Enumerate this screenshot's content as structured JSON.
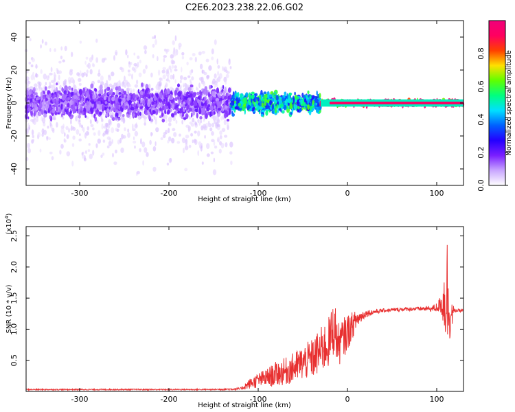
{
  "title": "C2E6.2023.238.22.06.G02",
  "chart_data": [
    {
      "type": "heatmap",
      "xlabel": "Height of straight line (km)",
      "ylabel": "Frequency (Hz)",
      "xlim": [
        -360,
        130
      ],
      "ylim": [
        -50,
        50
      ],
      "xticks": [
        -300,
        -200,
        -100,
        0,
        100
      ],
      "xtick_labels": [
        "-300",
        "-200",
        "-100",
        "0",
        "100"
      ],
      "yticks": [
        -40,
        -20,
        0,
        20,
        40
      ],
      "ytick_labels": [
        "-40",
        "-20",
        "0",
        "20",
        "40"
      ],
      "colorbar": {
        "label": "Normalized spectral amplitude",
        "range": [
          0,
          1
        ],
        "ticks": [
          0.0,
          0.2,
          0.4,
          0.6,
          0.8
        ],
        "tick_labels": [
          "0.0",
          "0.2",
          "0.4",
          "0.6",
          "0.8"
        ],
        "colormap": [
          "#ffffff",
          "#c9a6ff",
          "#7a1fff",
          "#2400ff",
          "#0060ff",
          "#00e0ff",
          "#00ff80",
          "#60ff00",
          "#ffe000",
          "#ff4000",
          "#ff0060",
          "#f0007a"
        ]
      },
      "features": [
        {
          "x_range": [
            -360,
            -130
          ],
          "freq_halfwidth": 50,
          "amplitude": 0.05,
          "description_color": "#c9a6ff"
        },
        {
          "x_range": [
            -360,
            -130
          ],
          "freq_halfwidth": 12,
          "amplitude": 0.15,
          "description_color": "#5a0fff"
        },
        {
          "x_range": [
            -130,
            -30
          ],
          "freq_halfwidth": 8,
          "amplitude": 0.45,
          "description_color": "#00e0ff"
        },
        {
          "x_range": [
            -30,
            130
          ],
          "freq_halfwidth": 2,
          "amplitude": 0.95,
          "description_color": "#ff2000"
        }
      ]
    },
    {
      "type": "line",
      "xlabel": "Height of straight line (km)",
      "ylabel": "SNR (10 * v/v)",
      "y_multiplier_label": "(x10",
      "y_multiplier_exp": "4",
      "y_multiplier_close": ")",
      "xlim": [
        -360,
        130
      ],
      "ylim": [
        0,
        2.65
      ],
      "xticks": [
        -300,
        -200,
        -100,
        0,
        100
      ],
      "xtick_labels": [
        "-300",
        "-200",
        "-100",
        "0",
        "100"
      ],
      "yticks": [
        0.5,
        1.0,
        1.5,
        2.0,
        2.5
      ],
      "ytick_labels": [
        "0.5",
        "1.0",
        "1.5",
        "2.0",
        "2.5"
      ],
      "line_color": "#e83030",
      "x": [
        -360,
        -300,
        -250,
        -200,
        -150,
        -120,
        -110,
        -100,
        -90,
        -80,
        -70,
        -60,
        -50,
        -40,
        -30,
        -20,
        -15,
        -10,
        0,
        10,
        20,
        30,
        40,
        60,
        80,
        95,
        100,
        105,
        108,
        112,
        115,
        120,
        130
      ],
      "y": [
        0.03,
        0.03,
        0.03,
        0.03,
        0.03,
        0.04,
        0.12,
        0.18,
        0.22,
        0.28,
        0.32,
        0.38,
        0.46,
        0.52,
        0.65,
        0.8,
        1.05,
        0.75,
        0.95,
        1.15,
        1.25,
        1.28,
        1.3,
        1.32,
        1.33,
        1.33,
        1.35,
        1.4,
        1.45,
        1.6,
        1.2,
        1.3,
        1.3
      ],
      "noise_amplitude": [
        0.01,
        0.01,
        0.01,
        0.01,
        0.01,
        0.02,
        0.08,
        0.12,
        0.15,
        0.2,
        0.22,
        0.25,
        0.28,
        0.32,
        0.38,
        0.42,
        0.45,
        0.35,
        0.3,
        0.15,
        0.06,
        0.04,
        0.03,
        0.03,
        0.03,
        0.05,
        0.08,
        0.15,
        0.5,
        1.0,
        0.35,
        0.03,
        0.02
      ]
    }
  ]
}
